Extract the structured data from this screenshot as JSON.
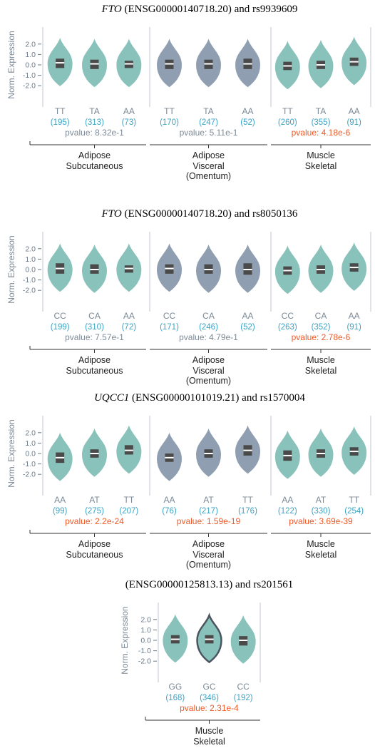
{
  "colors": {
    "teal": "#88c2ba",
    "slate": "#8f9fb1",
    "box": "#4a4a4a",
    "pvalue_significant": "#f05a28",
    "pvalue_ns": "#7d8a96",
    "count": "#3ba3c4",
    "axis": "#6a7a8a"
  },
  "chart_data": [
    {
      "type": "violin",
      "title": {
        "gene": "FTO",
        "rest": " (ENSG00000140718.20) and rs9939609"
      },
      "ylabel": "Norm. Expression",
      "yticks": [
        "2.0",
        "1.0",
        "0.0",
        "-1.0",
        "-2.0"
      ],
      "ylim": [
        -2.6,
        2.8
      ],
      "panels": [
        {
          "tissue": [
            "Adipose",
            "Subcutaneous"
          ],
          "color": "teal",
          "pvalue": "pvalue: 8.32e-1",
          "significant": false,
          "genotypes": [
            {
              "label": "TT",
              "count": "(195)",
              "median": 0.2,
              "q1": -0.3,
              "q3": 0.6
            },
            {
              "label": "TA",
              "count": "(313)",
              "median": 0.1,
              "q1": -0.4,
              "q3": 0.5
            },
            {
              "label": "AA",
              "count": "(73)",
              "median": 0.1,
              "q1": -0.3,
              "q3": 0.4
            }
          ]
        },
        {
          "tissue": [
            "Adipose",
            "Visceral",
            "(Omentum)"
          ],
          "color": "slate",
          "pvalue": "pvalue: 5.11e-1",
          "significant": false,
          "genotypes": [
            {
              "label": "TT",
              "count": "(170)",
              "median": 0.1,
              "q1": -0.4,
              "q3": 0.5
            },
            {
              "label": "TA",
              "count": "(247)",
              "median": 0.1,
              "q1": -0.4,
              "q3": 0.5
            },
            {
              "label": "AA",
              "count": "(52)",
              "median": 0.1,
              "q1": -0.4,
              "q3": 0.6
            }
          ]
        },
        {
          "tissue": [
            "Muscle",
            "Skeletal"
          ],
          "color": "teal",
          "pvalue": "pvalue: 4.18e-6",
          "significant": true,
          "genotypes": [
            {
              "label": "TT",
              "count": "(260)",
              "median": -0.1,
              "q1": -0.5,
              "q3": 0.3
            },
            {
              "label": "TA",
              "count": "(355)",
              "median": 0.0,
              "q1": -0.4,
              "q3": 0.4
            },
            {
              "label": "AA",
              "count": "(91)",
              "median": 0.3,
              "q1": -0.1,
              "q3": 0.7
            }
          ]
        }
      ]
    },
    {
      "type": "violin",
      "title": {
        "gene": "FTO",
        "rest": " (ENSG00000140718.20) and rs8050136"
      },
      "ylabel": "Norm. Expression",
      "yticks": [
        "2.0",
        "1.0",
        "0.0",
        "-1.0",
        "-2.0"
      ],
      "ylim": [
        -2.6,
        2.8
      ],
      "panels": [
        {
          "tissue": [
            "Adipose",
            "Subcutaneous"
          ],
          "color": "teal",
          "pvalue": "pvalue: 7.57e-1",
          "significant": false,
          "genotypes": [
            {
              "label": "CC",
              "count": "(199)",
              "median": 0.1,
              "q1": -0.4,
              "q3": 0.6
            },
            {
              "label": "CA",
              "count": "(310)",
              "median": 0.0,
              "q1": -0.4,
              "q3": 0.5
            },
            {
              "label": "AA",
              "count": "(72)",
              "median": 0.1,
              "q1": -0.3,
              "q3": 0.4
            }
          ]
        },
        {
          "tissue": [
            "Adipose",
            "Visceral",
            "(Omentum)"
          ],
          "color": "slate",
          "pvalue": "pvalue: 4.79e-1",
          "significant": false,
          "genotypes": [
            {
              "label": "CC",
              "count": "(171)",
              "median": 0.1,
              "q1": -0.4,
              "q3": 0.5
            },
            {
              "label": "CA",
              "count": "(246)",
              "median": 0.0,
              "q1": -0.4,
              "q3": 0.5
            },
            {
              "label": "AA",
              "count": "(52)",
              "median": 0.0,
              "q1": -0.5,
              "q3": 0.6
            }
          ]
        },
        {
          "tissue": [
            "Muscle",
            "Skeletal"
          ],
          "color": "teal",
          "pvalue": "pvalue: 2.78e-6",
          "significant": true,
          "genotypes": [
            {
              "label": "CC",
              "count": "(263)",
              "median": -0.1,
              "q1": -0.5,
              "q3": 0.3
            },
            {
              "label": "CA",
              "count": "(352)",
              "median": 0.0,
              "q1": -0.4,
              "q3": 0.4
            },
            {
              "label": "AA",
              "count": "(91)",
              "median": 0.2,
              "q1": -0.2,
              "q3": 0.6
            }
          ]
        }
      ]
    },
    {
      "type": "violin",
      "title": {
        "gene": "UQCC1",
        "rest": " (ENSG00000101019.21) and rs1570004"
      },
      "ylabel": "Norm. Expression",
      "yticks": [
        "2.0",
        "1.0",
        "0.0",
        "-1.0",
        "-2.0"
      ],
      "ylim": [
        -2.6,
        2.8
      ],
      "panels": [
        {
          "tissue": [
            "Adipose",
            "Subcutaneous"
          ],
          "color": "teal",
          "pvalue": "pvalue: 2.2e-24",
          "significant": true,
          "genotypes": [
            {
              "label": "AA",
              "count": "(99)",
              "median": -0.4,
              "q1": -0.9,
              "q3": 0.1
            },
            {
              "label": "AT",
              "count": "(275)",
              "median": 0.0,
              "q1": -0.4,
              "q3": 0.4
            },
            {
              "label": "TT",
              "count": "(207)",
              "median": 0.3,
              "q1": -0.1,
              "q3": 0.8
            }
          ]
        },
        {
          "tissue": [
            "Adipose",
            "Visceral",
            "(Omentum)"
          ],
          "color": "slate",
          "pvalue": "pvalue: 1.59e-19",
          "significant": true,
          "genotypes": [
            {
              "label": "AA",
              "count": "(76)",
              "median": -0.4,
              "q1": -0.8,
              "q3": 0.0
            },
            {
              "label": "AT",
              "count": "(217)",
              "median": 0.0,
              "q1": -0.4,
              "q3": 0.4
            },
            {
              "label": "TT",
              "count": "(176)",
              "median": 0.3,
              "q1": -0.2,
              "q3": 0.8
            }
          ]
        },
        {
          "tissue": [
            "Muscle",
            "Skeletal"
          ],
          "color": "teal",
          "pvalue": "pvalue: 3.69e-39",
          "significant": true,
          "genotypes": [
            {
              "label": "AA",
              "count": "(122)",
              "median": -0.2,
              "q1": -0.7,
              "q3": 0.3
            },
            {
              "label": "AT",
              "count": "(330)",
              "median": 0.0,
              "q1": -0.4,
              "q3": 0.4
            },
            {
              "label": "TT",
              "count": "(254)",
              "median": 0.2,
              "q1": -0.2,
              "q3": 0.6
            }
          ]
        }
      ]
    },
    {
      "type": "violin",
      "title": {
        "gene": "",
        "rest": "(ENSG00000125813.13) and rs201561"
      },
      "ylabel": "Norm. Expression",
      "yticks": [
        "2.0",
        "1.0",
        "0.0",
        "-1.0",
        "-2.0"
      ],
      "ylim": [
        -2.6,
        2.8
      ],
      "panels": [
        {
          "tissue": [
            "Muscle",
            "Skeletal"
          ],
          "color": "teal",
          "pvalue": "pvalue: 2.31e-4",
          "significant": true,
          "genotypes": [
            {
              "label": "GG",
              "count": "(168)",
              "median": 0.1,
              "q1": -0.3,
              "q3": 0.5
            },
            {
              "label": "GC",
              "count": "(346)",
              "median": 0.1,
              "q1": -0.3,
              "q3": 0.5,
              "highlight": true
            },
            {
              "label": "CC",
              "count": "(192)",
              "median": 0.0,
              "q1": -0.5,
              "q3": 0.4
            }
          ]
        }
      ]
    }
  ]
}
